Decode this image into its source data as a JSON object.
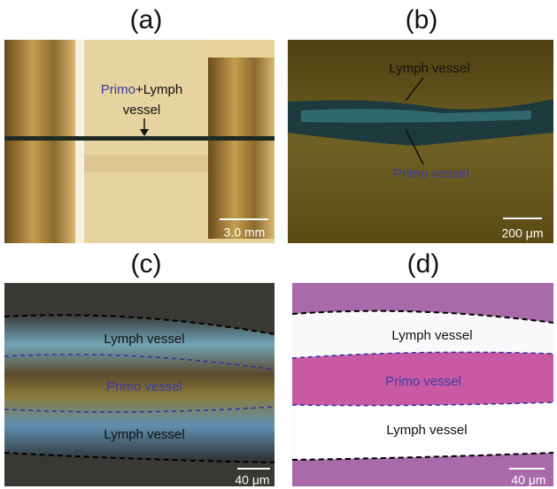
{
  "panels": [
    {
      "label": "(a)",
      "annotation": [
        "Primo",
        "+Lymph",
        "vessel"
      ],
      "scale_bar": "3.0 mm"
    },
    {
      "label": "(b)",
      "annotations": [
        "Lymph vessel",
        "Primo vessel"
      ],
      "scale_bar": "200 μm"
    },
    {
      "label": "(c)",
      "annotations": [
        "Lymph vessel",
        "Primo vessel",
        "Lymph vessel"
      ],
      "scale_bar": "40 μm"
    },
    {
      "label": "(d)",
      "annotations": [
        "Lymph vessel",
        "Primo vessel",
        "Lymph vessel"
      ],
      "scale_bar": "40 μm"
    }
  ]
}
